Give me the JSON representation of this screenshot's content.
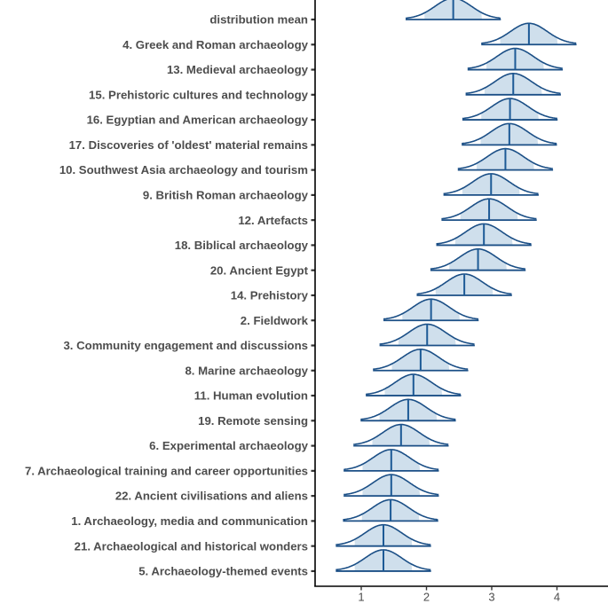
{
  "chart_data": {
    "type": "ridgeline",
    "title": "",
    "xlabel": "",
    "ylabel": "",
    "xlim": [
      0.35,
      4.75
    ],
    "x_ticks": [
      1,
      2,
      3,
      4
    ],
    "grid": false,
    "legend": null,
    "colors": {
      "fill": "#cfdfec",
      "line": "#1b4f86",
      "median": "#1d5a96",
      "text": "#4d4d4d",
      "axis": "#000000"
    },
    "distribution_half_width": 0.73,
    "shaded_half_width": 0.44,
    "categories": [
      "distribution mean",
      "4. Greek and Roman archaeology",
      "13. Medieval archaeology",
      "15. Prehistoric cultures and technology",
      "16. Egyptian and American archaeology",
      "17. Discoveries of 'oldest' material remains",
      "10. Southwest Asia archaeology and tourism",
      "9. British Roman archaeology",
      "12. Artefacts",
      "18. Biblical archaeology",
      "20. Ancient Egypt",
      "14. Prehistory",
      "2. Fieldwork",
      "3. Community engagement and discussions",
      "8. Marine archaeology",
      "11. Human evolution",
      "19. Remote sensing",
      "6. Experimental archaeology",
      "7. Archaeological training and career opportunities",
      "22. Ancient civilisations and aliens",
      "1. Archaeology, media and communication",
      "21. Archaeological and historical wonders",
      "5. Archaeology-themed events"
    ],
    "values": [
      2.41,
      3.57,
      3.36,
      3.33,
      3.28,
      3.27,
      3.21,
      2.99,
      2.96,
      2.88,
      2.79,
      2.58,
      2.07,
      2.01,
      1.91,
      1.8,
      1.72,
      1.61,
      1.46,
      1.46,
      1.45,
      1.34,
      1.34
    ]
  }
}
